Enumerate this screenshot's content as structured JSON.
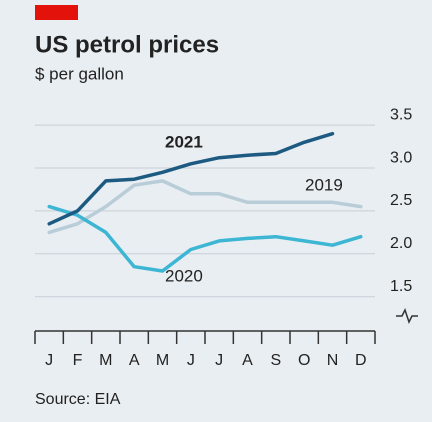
{
  "chart_data": {
    "type": "line",
    "title": "US petrol prices",
    "subtitle": "$ per gallon",
    "source": "Source: EIA",
    "categories": [
      "J",
      "F",
      "M",
      "A",
      "M",
      "J",
      "J",
      "A",
      "S",
      "O",
      "N",
      "D"
    ],
    "series": [
      {
        "name": "2019",
        "color": "#b9cdd9",
        "values": [
          2.25,
          2.35,
          2.55,
          2.8,
          2.85,
          2.7,
          2.7,
          2.6,
          2.6,
          2.6,
          2.6,
          2.55
        ]
      },
      {
        "name": "2020",
        "color": "#3db6d3",
        "values": [
          2.55,
          2.45,
          2.25,
          1.85,
          1.8,
          2.05,
          2.15,
          2.18,
          2.2,
          2.15,
          2.1,
          2.2
        ]
      },
      {
        "name": "2021",
        "color": "#1d5a82",
        "values": [
          2.35,
          2.5,
          2.85,
          2.87,
          2.95,
          3.05,
          3.12,
          3.15,
          3.17,
          3.3,
          3.4,
          null
        ]
      }
    ],
    "ylim": [
      1.1,
      3.7
    ],
    "yticks": [
      1.5,
      {
        "value": 2,
        "label": "2.0"
      },
      2.5,
      {
        "value": 3,
        "label": "3.0"
      },
      3.5
    ],
    "grid": true
  }
}
